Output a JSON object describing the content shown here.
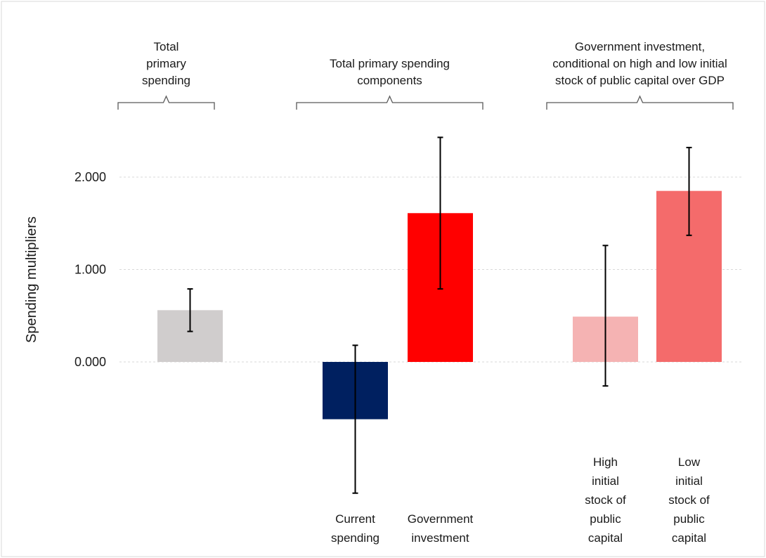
{
  "chart_data": {
    "type": "bar",
    "ylabel": "Spending multipliers",
    "y_ticks": [
      "0.000",
      "1.000",
      "2.000"
    ],
    "ylim": [
      -1.5,
      2.5
    ],
    "grid": "horizontal dotted",
    "groups": [
      {
        "label_lines": [
          "Total",
          "primary",
          "spending"
        ]
      },
      {
        "label_lines": [
          "Total primary spending",
          "components"
        ]
      },
      {
        "label_lines": [
          "Government investment,",
          "conditional on high and low initial",
          "stock of public capital over GDP"
        ]
      }
    ],
    "bars": [
      {
        "label_lines": [],
        "value": 0.56,
        "err_low": 0.33,
        "err_high": 0.79,
        "color": "#d0cdcd",
        "pattern": "solid"
      },
      {
        "label_lines": [
          "Current",
          "spending"
        ],
        "value": -0.62,
        "err_low": -1.42,
        "err_high": 0.18,
        "color": "#002060",
        "pattern": "solid"
      },
      {
        "label_lines": [
          "Government",
          "investment"
        ],
        "value": 1.61,
        "err_low": 0.79,
        "err_high": 2.43,
        "color": "#ff0000",
        "pattern": "solid"
      },
      {
        "label_lines": [
          "High",
          "initial",
          "stock of",
          "public",
          "capital"
        ],
        "value": 0.49,
        "err_low": -0.26,
        "err_high": 1.26,
        "color": "#f08a8a",
        "pattern": "check"
      },
      {
        "label_lines": [
          "Low",
          "initial",
          "stock of",
          "public",
          "capital"
        ],
        "value": 1.85,
        "err_low": 1.37,
        "err_high": 2.32,
        "color": "#ee1c1c",
        "pattern": "check"
      }
    ]
  }
}
